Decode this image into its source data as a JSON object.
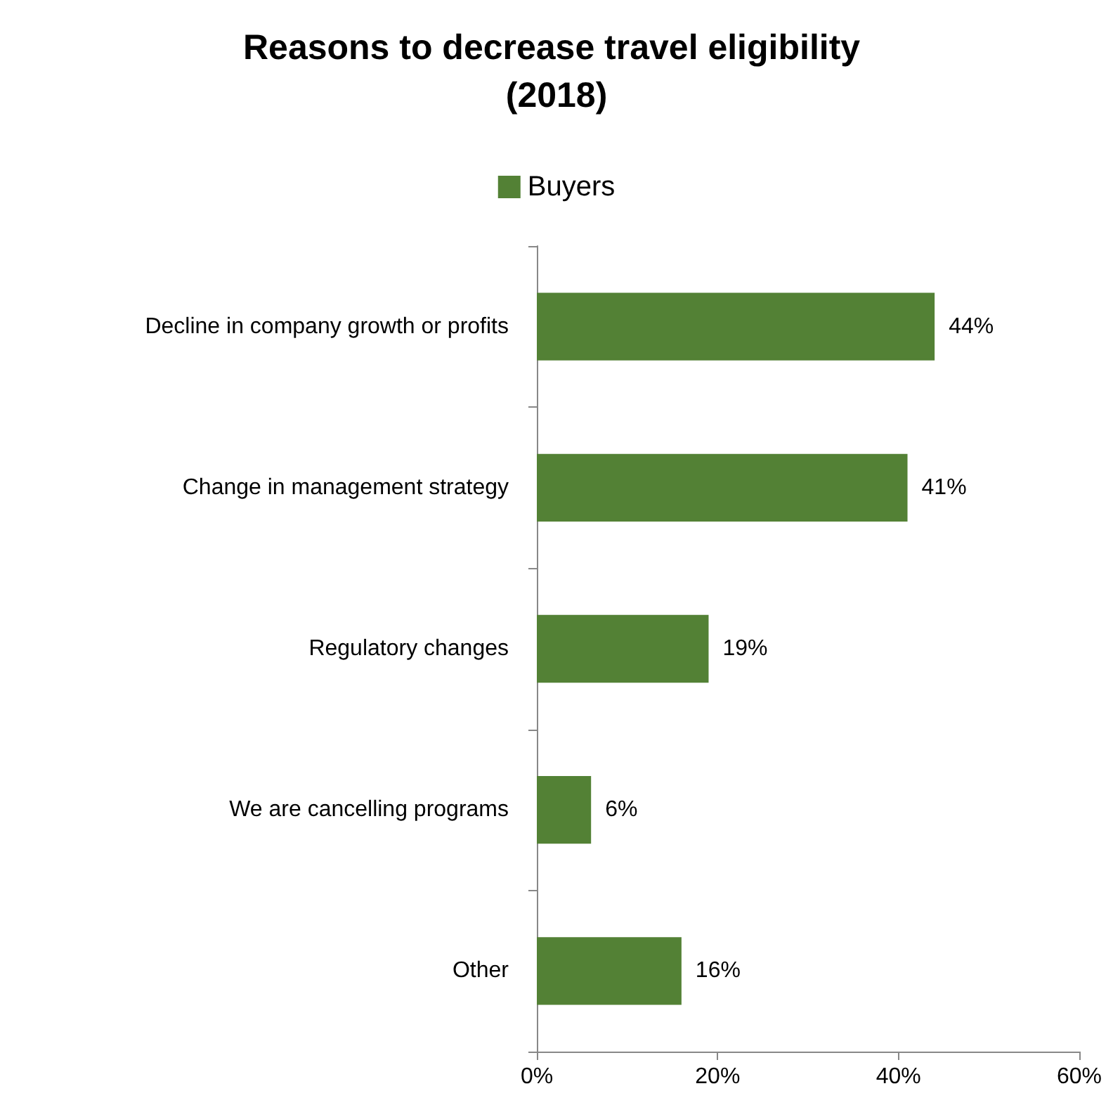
{
  "chart_data": {
    "type": "bar",
    "orientation": "horizontal",
    "title": "Reasons to decrease travel eligibility (2018)",
    "categories": [
      "Decline in company growth or profits",
      "Change in management strategy",
      "Regulatory changes",
      "We are cancelling programs",
      "Other"
    ],
    "series": [
      {
        "name": "Buyers",
        "color": "#538135",
        "values": [
          44,
          41,
          19,
          6,
          16
        ],
        "value_labels": [
          "44%",
          "41%",
          "19%",
          "6%",
          "16%"
        ]
      }
    ],
    "xlim": [
      0,
      60
    ],
    "xticks": [
      {
        "value": 0,
        "label": "0%"
      },
      {
        "value": 20,
        "label": "20%"
      },
      {
        "value": 40,
        "label": "40%"
      },
      {
        "value": 60,
        "label": "60%"
      }
    ],
    "legend": "top",
    "grid": false
  }
}
